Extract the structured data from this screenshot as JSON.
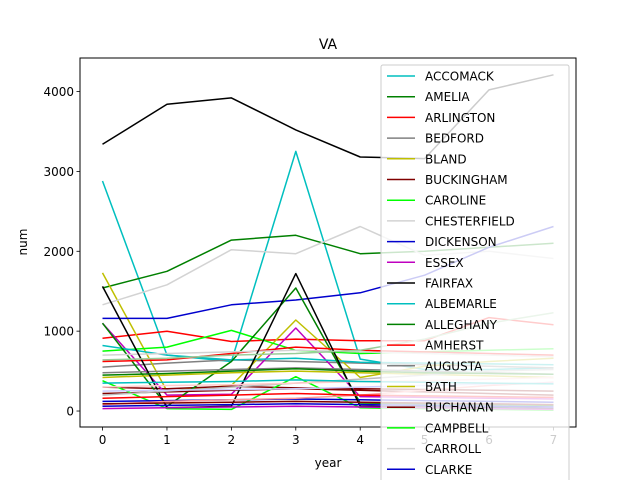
{
  "chart_data": {
    "type": "line",
    "title": "VA",
    "xlabel": "year",
    "ylabel": "num",
    "x": [
      0,
      1,
      2,
      3,
      4,
      5,
      6,
      7
    ],
    "xlim": [
      -0.35,
      7.35
    ],
    "ylim": [
      -200,
      4420
    ],
    "xticks": [
      "0",
      "1",
      "2",
      "3",
      "4",
      "5",
      "6",
      "7"
    ],
    "yticks": [
      0,
      1000,
      2000,
      3000,
      4000
    ],
    "ytick_labels": [
      "0",
      "1000",
      "2000",
      "3000",
      "4000"
    ],
    "grid": false,
    "legend_position": "upper-right",
    "series": [
      {
        "name": "ACCOMACK",
        "color": "#00bfbf",
        "values": [
          2880,
          700,
          620,
          3250,
          650,
          520,
          520,
          540
        ]
      },
      {
        "name": "AMELIA",
        "color": "#008000",
        "values": [
          1540,
          1750,
          2140,
          2200,
          1970,
          2000,
          2050,
          2100
        ]
      },
      {
        "name": "ARLINGTON",
        "color": "#ff0000",
        "values": [
          910,
          1000,
          870,
          900,
          880,
          880,
          1170,
          1080
        ]
      },
      {
        "name": "BEDFORD",
        "color": "#808080",
        "values": [
          550,
          600,
          640,
          620,
          600,
          580,
          560,
          540
        ]
      },
      {
        "name": "BLAND",
        "color": "#bfbf00",
        "values": [
          1730,
          250,
          320,
          1140,
          420,
          560,
          620,
          660
        ]
      },
      {
        "name": "BUCKINGHAM",
        "color": "#800000",
        "values": [
          300,
          280,
          310,
          290,
          280,
          270,
          260,
          250
        ]
      },
      {
        "name": "CAROLINE",
        "color": "#00ff00",
        "values": [
          750,
          800,
          1010,
          760,
          720,
          740,
          760,
          780
        ]
      },
      {
        "name": "CHESTERFIELD",
        "color": "#d3d3d3",
        "values": [
          1330,
          1580,
          2020,
          1970,
          2310,
          1950,
          2000,
          1910
        ]
      },
      {
        "name": "DICKENSON",
        "color": "#0000cd",
        "values": [
          1160,
          1160,
          1330,
          1390,
          1480,
          1700,
          2050,
          2310
        ]
      },
      {
        "name": "ESSEX",
        "color": "#bf00bf",
        "values": [
          1100,
          200,
          210,
          1040,
          180,
          170,
          160,
          150
        ]
      },
      {
        "name": "FAIRFAX",
        "color": "#000000",
        "values": [
          3340,
          3840,
          3920,
          3520,
          3180,
          3160,
          4020,
          4210
        ]
      },
      {
        "name": "ALBEMARLE",
        "color": "#00bfbf",
        "values": [
          820,
          700,
          640,
          660,
          610,
          600,
          590,
          580
        ]
      },
      {
        "name": "ALLEGHANY",
        "color": "#008000",
        "values": [
          1100,
          60,
          620,
          1540,
          100,
          90,
          80,
          70
        ]
      },
      {
        "name": "AMHERST",
        "color": "#ff0000",
        "values": [
          620,
          640,
          720,
          800,
          760,
          740,
          720,
          700
        ]
      },
      {
        "name": "AUGUSTA",
        "color": "#808080",
        "values": [
          480,
          500,
          520,
          540,
          520,
          500,
          480,
          460
        ]
      },
      {
        "name": "BATH",
        "color": "#bfbf00",
        "values": [
          420,
          450,
          480,
          500,
          480,
          460,
          440,
          420
        ]
      },
      {
        "name": "BUCHANAN",
        "color": "#800000",
        "values": [
          220,
          240,
          260,
          280,
          260,
          240,
          220,
          200
        ]
      },
      {
        "name": "CAMPBELL",
        "color": "#00ff00",
        "values": [
          380,
          30,
          20,
          430,
          40,
          30,
          20,
          10
        ]
      },
      {
        "name": "CARROLL",
        "color": "#d3d3d3",
        "values": [
          700,
          720,
          740,
          760,
          740,
          720,
          700,
          680
        ]
      },
      {
        "name": "CLARKE",
        "color": "#0000cd",
        "values": [
          120,
          130,
          140,
          150,
          140,
          130,
          120,
          110
        ]
      },
      {
        "name": "",
        "color": "#000000",
        "values": [
          1560,
          40,
          60,
          1720,
          60,
          50,
          40,
          30
        ]
      },
      {
        "name": "",
        "color": "#ff9999",
        "values": [
          80,
          120,
          140,
          160,
          200,
          260,
          320,
          360
        ]
      },
      {
        "name": "",
        "color": "#99cc99",
        "values": [
          640,
          660,
          700,
          720,
          760,
          900,
          1100,
          1230
        ]
      },
      {
        "name": "",
        "color": "#bbbbbb",
        "values": [
          200,
          250,
          300,
          350,
          400,
          450,
          500,
          520
        ]
      },
      {
        "name": "",
        "color": "#ffcccc",
        "values": [
          300,
          320,
          330,
          350,
          370,
          380,
          400,
          420
        ]
      },
      {
        "name": "",
        "color": "#ccccff",
        "values": [
          250,
          260,
          270,
          280,
          300,
          320,
          340,
          350
        ]
      },
      {
        "name": "",
        "color": "#800000",
        "values": [
          90,
          100,
          110,
          120,
          110,
          100,
          90,
          80
        ]
      },
      {
        "name": "",
        "color": "#bf00bf",
        "values": [
          30,
          40,
          50,
          60,
          50,
          40,
          30,
          20
        ]
      },
      {
        "name": "",
        "color": "#008000",
        "values": [
          450,
          470,
          500,
          530,
          500,
          480,
          470,
          460
        ]
      },
      {
        "name": "",
        "color": "#ff0000",
        "values": [
          160,
          180,
          200,
          220,
          200,
          190,
          180,
          170
        ]
      },
      {
        "name": "",
        "color": "#00bfbf",
        "values": [
          350,
          360,
          370,
          390,
          370,
          360,
          350,
          340
        ]
      },
      {
        "name": "",
        "color": "#0000cd",
        "values": [
          60,
          70,
          80,
          90,
          80,
          70,
          60,
          50
        ]
      }
    ]
  }
}
